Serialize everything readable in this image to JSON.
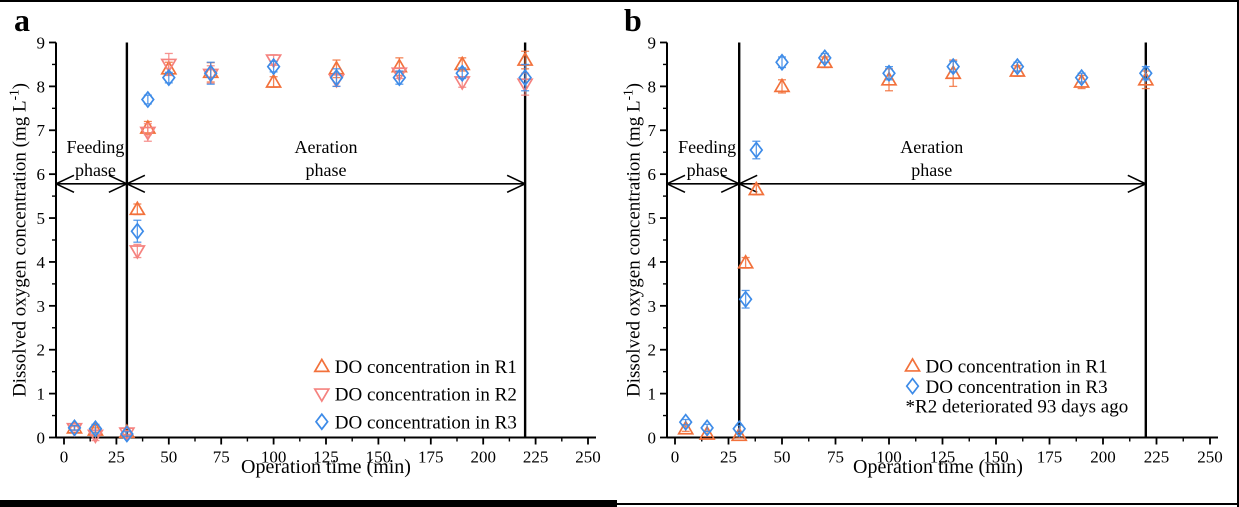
{
  "chart_data": [
    {
      "panel_label": "a",
      "type": "scatter",
      "xlabel": "Operation time (min)",
      "ylabel": "Dissolved oxygen concentration (mg L-1)",
      "ylabel_pre": "Dissolved oxygen concentration (mg L",
      "ylabel_sup": "-1",
      "ylabel_post": ")",
      "xlim": [
        0,
        250
      ],
      "ylim": [
        0,
        9
      ],
      "x_ticks": [
        0,
        25,
        50,
        75,
        100,
        125,
        150,
        175,
        200,
        225,
        250
      ],
      "x_minor_step": 12.5,
      "y_ticks": [
        0,
        1,
        2,
        3,
        4,
        5,
        6,
        7,
        8,
        9
      ],
      "y_minor_step": 0.5,
      "grid": false,
      "event_lines_x": [
        30,
        220
      ],
      "annotations": [
        {
          "lines": [
            "Feeding",
            "phase"
          ],
          "text_cx": 15,
          "text_y": [
            6.62,
            6.1
          ],
          "arrow_y": 5.78,
          "arrow_x1": 0,
          "arrow_x2": 30,
          "from_spine": true
        },
        {
          "lines": [
            "Aeration",
            "phase"
          ],
          "text_cx": 125,
          "text_y": [
            6.62,
            6.1
          ],
          "arrow_y": 5.78,
          "arrow_x1": 30,
          "arrow_x2": 220,
          "from_spine": false
        }
      ],
      "series": [
        {
          "name": "DO concentration in R1",
          "marker": "triangle-up",
          "color": "#F2713B",
          "x": [
            5,
            15,
            30,
            35,
            40,
            50,
            70,
            100,
            130,
            160,
            190,
            220
          ],
          "y": [
            0.22,
            0.17,
            0.12,
            5.2,
            7.05,
            8.4,
            8.32,
            8.1,
            8.4,
            8.45,
            8.5,
            8.6
          ],
          "err": [
            0.05,
            0.05,
            0.05,
            0.12,
            0.15,
            0.15,
            0.22,
            0.12,
            0.2,
            0.2,
            0.15,
            0.2
          ]
        },
        {
          "name": "DO concentration in R2",
          "marker": "triangle-down",
          "color": "#F5827F",
          "x": [
            5,
            15,
            30,
            35,
            40,
            50,
            70,
            100,
            130,
            160,
            190,
            220
          ],
          "y": [
            0.2,
            0.05,
            0.1,
            4.25,
            6.95,
            8.5,
            8.27,
            8.6,
            8.15,
            8.3,
            8.1,
            8.05
          ],
          "err": [
            0.05,
            0.12,
            0.05,
            0.15,
            0.2,
            0.25,
            0.2,
            0.12,
            0.15,
            0.12,
            0.12,
            0.25
          ]
        },
        {
          "name": "DO concentration in R3",
          "marker": "diamond",
          "color": "#3D8BE8",
          "x": [
            5,
            15,
            30,
            35,
            40,
            50,
            70,
            100,
            130,
            160,
            190,
            220
          ],
          "y": [
            0.22,
            0.2,
            0.08,
            4.7,
            7.7,
            8.2,
            8.3,
            8.45,
            8.2,
            8.2,
            8.3,
            8.2
          ],
          "err": [
            0.05,
            0.1,
            0.05,
            0.25,
            0.1,
            0.12,
            0.25,
            0.12,
            0.2,
            0.15,
            0.12,
            0.3
          ]
        }
      ],
      "legend": {
        "marker_x": 123,
        "rows_y": [
          1.62,
          0.99,
          0.36
        ],
        "note": null
      }
    },
    {
      "panel_label": "b",
      "type": "scatter",
      "xlabel": "Operation time (min)",
      "ylabel": "Dissolved oxygen concentration (mg L-1)",
      "ylabel_pre": "Dissolved oxygen concentration (mg L",
      "ylabel_sup": "-1",
      "ylabel_post": ")",
      "xlim": [
        0,
        250
      ],
      "ylim": [
        0,
        9
      ],
      "x_ticks": [
        0,
        25,
        50,
        75,
        100,
        125,
        150,
        175,
        200,
        225,
        250
      ],
      "x_minor_step": 12.5,
      "y_ticks": [
        0,
        1,
        2,
        3,
        4,
        5,
        6,
        7,
        8,
        9
      ],
      "y_minor_step": 0.5,
      "grid": false,
      "event_lines_x": [
        30,
        220
      ],
      "annotations": [
        {
          "lines": [
            "Feeding",
            "phase"
          ],
          "text_cx": 15,
          "text_y": [
            6.62,
            6.1
          ],
          "arrow_y": 5.78,
          "arrow_x1": 0,
          "arrow_x2": 30,
          "from_spine": true
        },
        {
          "lines": [
            "Aeration",
            "phase"
          ],
          "text_cx": 120,
          "text_y": [
            6.62,
            6.1
          ],
          "arrow_y": 5.78,
          "arrow_x1": 30,
          "arrow_x2": 220,
          "from_spine": false
        }
      ],
      "series": [
        {
          "name": "DO concentration in R1",
          "marker": "triangle-up",
          "color": "#F2713B",
          "x": [
            5,
            15,
            30,
            33,
            38,
            50,
            70,
            100,
            130,
            160,
            190,
            220
          ],
          "y": [
            0.2,
            0.08,
            0.05,
            3.98,
            5.65,
            8.0,
            8.55,
            8.15,
            8.3,
            8.35,
            8.1,
            8.15
          ],
          "err": [
            0.06,
            0.06,
            0.06,
            0.12,
            0.12,
            0.15,
            0.12,
            0.25,
            0.3,
            0.12,
            0.15,
            0.2
          ]
        },
        {
          "name": "DO concentration in R3",
          "marker": "diamond",
          "color": "#3D8BE8",
          "x": [
            5,
            15,
            30,
            33,
            38,
            50,
            70,
            100,
            130,
            160,
            190,
            220
          ],
          "y": [
            0.35,
            0.22,
            0.2,
            3.15,
            6.55,
            8.55,
            8.65,
            8.3,
            8.45,
            8.45,
            8.2,
            8.3
          ],
          "err": [
            0.06,
            0.08,
            0.08,
            0.2,
            0.2,
            0.12,
            0.1,
            0.15,
            0.12,
            0.1,
            0.1,
            0.15
          ]
        }
      ],
      "legend": {
        "marker_x": 111,
        "rows_y": [
          1.63,
          1.17,
          0.72
        ],
        "note": "*R2 deteriorated 93 days ago"
      }
    }
  ]
}
